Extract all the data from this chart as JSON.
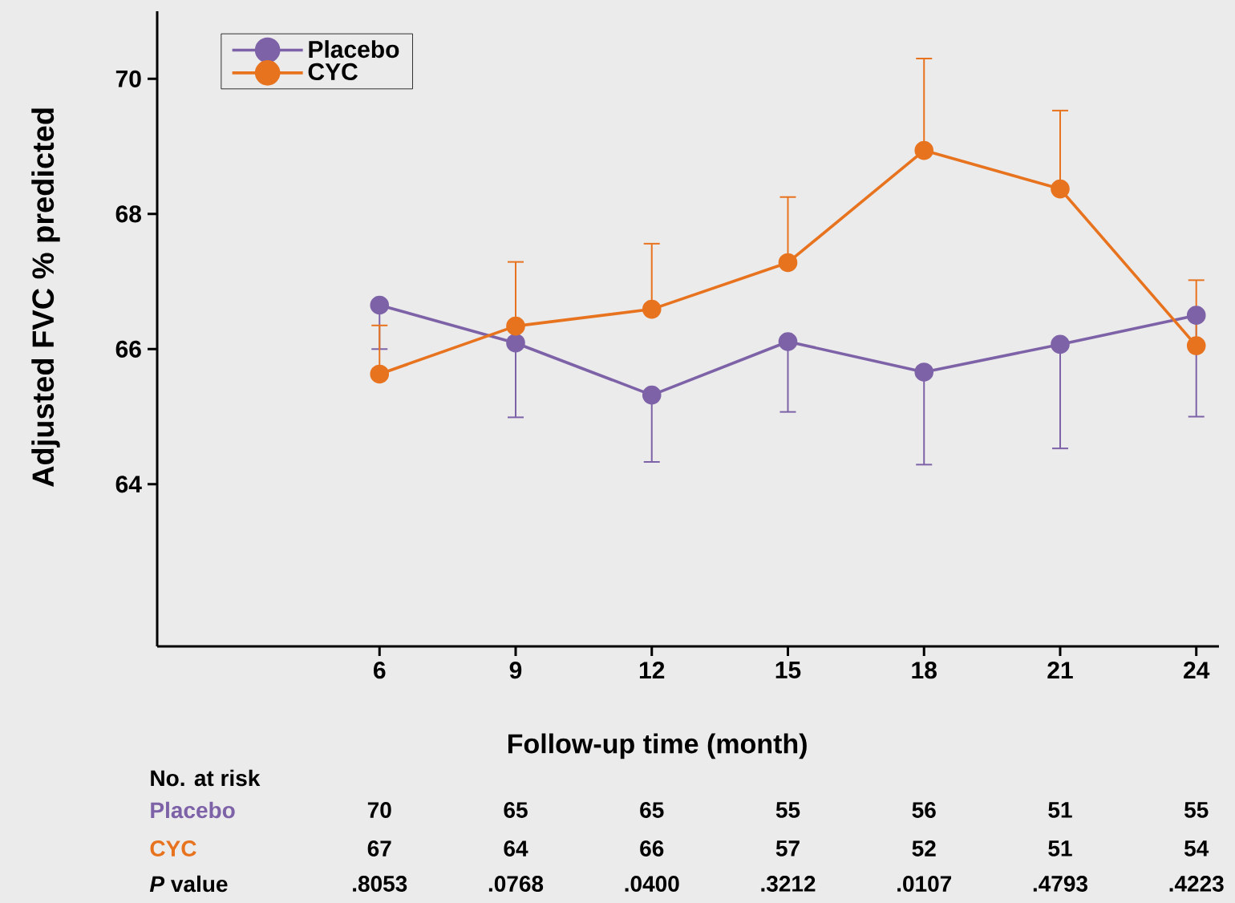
{
  "chart_data": {
    "type": "line",
    "xlabel": "Follow-up time (month)",
    "ylabel": "Adjusted FVC % predicted",
    "x": [
      6,
      9,
      12,
      15,
      18,
      21,
      24
    ],
    "series": [
      {
        "name": "Placebo",
        "color": "#7d62a8",
        "values": [
          66.65,
          66.09,
          65.32,
          66.11,
          65.66,
          66.07,
          66.5
        ],
        "errors": [
          [
            66.0,
            66.65
          ],
          [
            64.99,
            66.09
          ],
          [
            64.33,
            65.32
          ],
          [
            65.07,
            66.11
          ],
          [
            64.29,
            65.66
          ],
          [
            64.53,
            66.07
          ],
          [
            65.0,
            66.5
          ]
        ]
      },
      {
        "name": "CYC",
        "color": "#e8731f",
        "values": [
          65.63,
          66.34,
          66.59,
          67.28,
          68.94,
          68.37,
          66.05
        ],
        "errors": [
          [
            65.63,
            66.35
          ],
          [
            66.34,
            67.29
          ],
          [
            66.59,
            67.56
          ],
          [
            67.28,
            68.25
          ],
          [
            68.94,
            70.3
          ],
          [
            68.37,
            69.53
          ],
          [
            66.05,
            67.02
          ]
        ]
      }
    ],
    "xlim": [
      1.1,
      24.5
    ],
    "ylim": [
      61.6,
      71.0
    ],
    "xticks": [
      6,
      9,
      12,
      15,
      18,
      21,
      24
    ],
    "yticks": [
      64,
      66,
      68,
      70
    ],
    "marker": "circle",
    "line_style": "solid",
    "legend": "top left",
    "annotations": [
      "No. at risk",
      "Placebo",
      "70",
      "65",
      "65",
      "55",
      "56",
      "51",
      "55",
      "CYC",
      "67",
      "64",
      "66",
      "57",
      "52",
      "51",
      "54",
      "*P* value",
      ".8053",
      ".0768",
      ".0400",
      ".3212",
      ".0107",
      ".4793",
      ".4223"
    ]
  }
}
